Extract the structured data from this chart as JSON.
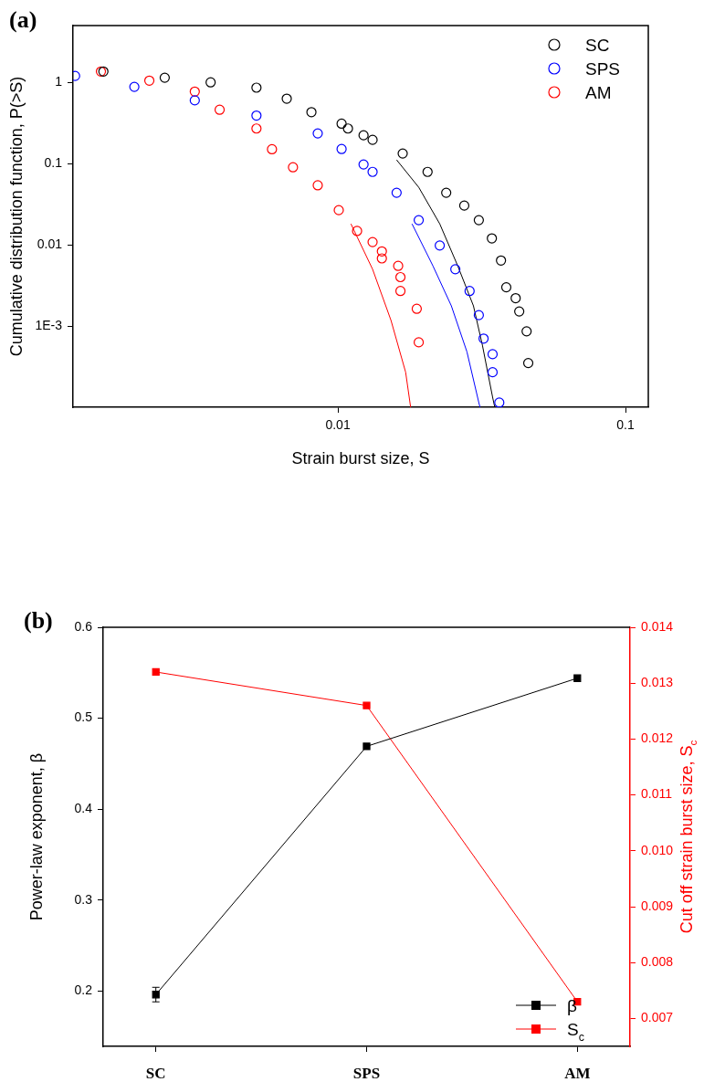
{
  "chart_data": [
    {
      "type": "scatter",
      "title": "(a)",
      "xlabel": "Strain burst size, S",
      "ylabel": "Cumulative distribution function, P(>S)",
      "log": "xy",
      "xlim": [
        0.0012,
        0.12
      ],
      "ylim": [
        0.0001,
        5
      ],
      "xticks": [
        0.01,
        0.1
      ],
      "yticks": [
        {
          "value": 0.001,
          "label": "1E-3"
        },
        0.01,
        0.1,
        1
      ],
      "legend": "top right",
      "marker": "circle",
      "series": [
        {
          "name": "SC",
          "color": "#000000",
          "x": [
            0.00153,
            0.0025,
            0.00361,
            0.00521,
            0.00664,
            0.00809,
            0.0103,
            0.01084,
            0.01228,
            0.0132,
            0.0168,
            0.0205,
            0.0238,
            0.0275,
            0.0309,
            0.0343,
            0.0369,
            0.0385,
            0.0415,
            0.0427,
            0.0453,
            0.0459
          ],
          "values": [
            1.36,
            1.14,
            1.0,
            0.86,
            0.63,
            0.43,
            0.31,
            0.27,
            0.223,
            0.196,
            0.133,
            0.079,
            0.0437,
            0.0304,
            0.0201,
            0.012,
            0.0064,
            0.003,
            0.0022,
            0.00151,
            0.00086,
            0.00035
          ]
        },
        {
          "name": "SPS",
          "color": "#0000ff",
          "x": [
            0.00122,
            0.00196,
            0.00318,
            0.00521,
            0.00851,
            0.0103,
            0.01228,
            0.0132,
            0.016,
            0.0191,
            0.0226,
            0.0256,
            0.0287,
            0.0309,
            0.0321,
            0.0345,
            0.0345,
            0.0364
          ],
          "values": [
            1.2,
            0.88,
            0.6,
            0.39,
            0.235,
            0.151,
            0.0975,
            0.079,
            0.0437,
            0.0201,
            0.0098,
            0.005,
            0.0027,
            0.00136,
            0.0007,
            0.00045,
            0.00027,
            0.000114
          ]
        },
        {
          "name": "AM",
          "color": "#ff0000",
          "x": [
            0.0015,
            0.00221,
            0.00318,
            0.00388,
            0.00521,
            0.0059,
            0.00698,
            0.00851,
            0.01007,
            0.01166,
            0.0132,
            0.01422,
            0.01422,
            0.0162,
            0.0165,
            0.0165,
            0.0188,
            0.0191
          ],
          "values": [
            1.36,
            1.05,
            0.77,
            0.46,
            0.27,
            0.15,
            0.09,
            0.054,
            0.0267,
            0.0148,
            0.0108,
            0.0083,
            0.0068,
            0.0055,
            0.004,
            0.0027,
            0.00163,
            0.00063
          ]
        },
        {
          "type": "line",
          "marker": "none",
          "color": "#000000",
          "x": [
            0.016,
            0.0191,
            0.0226,
            0.0261,
            0.0296,
            0.0318,
            0.0345,
            0.0351
          ],
          "values": [
            0.111,
            0.051,
            0.0181,
            0.0055,
            0.00177,
            0.00058,
            0.000133,
            0.0001
          ]
        },
        {
          "type": "line",
          "marker": "none",
          "color": "#0000ff",
          "x": [
            0.0181,
            0.0214,
            0.0248,
            0.0281,
            0.0309,
            0.0312
          ],
          "values": [
            0.0181,
            0.0055,
            0.00177,
            0.00048,
            0.000114,
            0.0001
          ]
        },
        {
          "type": "line",
          "marker": "none",
          "color": "#ff0000",
          "x": [
            0.0111,
            0.0132,
            0.0153,
            0.0172,
            0.0179
          ],
          "values": [
            0.0181,
            0.005,
            0.00117,
            0.00027,
            0.0001
          ]
        }
      ]
    },
    {
      "type": "line",
      "title": "(b)",
      "ylabel": "Power-law exponent, β",
      "y2label": "Cut off strain burst size, S$_{c}$",
      "categories": [
        "SC",
        "SPS",
        "AM"
      ],
      "ylim": [
        0.139,
        0.6
      ],
      "yticks": [
        0.2,
        0.3,
        0.4,
        0.5,
        0.6
      ],
      "y2lim": [
        0.0065,
        0.014
      ],
      "y2ticks": [
        0.007,
        0.008,
        0.009,
        {
          "value": 0.01,
          "label": "0.010"
        },
        0.011,
        0.012,
        0.013,
        0.014
      ],
      "legend": "bottom right",
      "marker": "square",
      "series": [
        {
          "name": "β",
          "color": "#000000",
          "values": [
            0.196,
            0.469,
            0.544
          ],
          "errors": [
            0.008,
            null,
            null
          ]
        },
        {
          "name": "S$_{c}$",
          "color": "#ff0000",
          "axis": "y2",
          "values": [
            0.0132,
            0.0126,
            0.0073
          ]
        }
      ]
    }
  ]
}
